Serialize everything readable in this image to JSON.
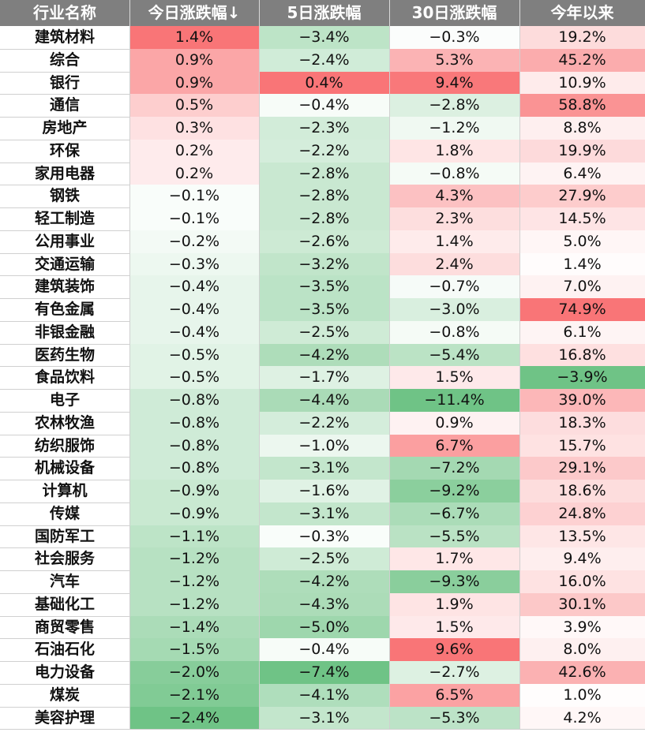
{
  "chart_data": {
    "type": "table",
    "columns": [
      "行业名称",
      "今日涨跌幅↓",
      "5日涨跌幅",
      "30日涨跌幅",
      "今年以来"
    ],
    "rows": [
      [
        "建筑材料",
        "1.4%",
        "−3.4%",
        "−0.3%",
        "19.2%"
      ],
      [
        "综合",
        "0.9%",
        "−2.4%",
        "5.3%",
        "45.2%"
      ],
      [
        "银行",
        "0.9%",
        "0.4%",
        "9.4%",
        "10.9%"
      ],
      [
        "通信",
        "0.5%",
        "−0.4%",
        "−2.8%",
        "58.8%"
      ],
      [
        "房地产",
        "0.3%",
        "−2.3%",
        "−1.2%",
        "8.8%"
      ],
      [
        "环保",
        "0.2%",
        "−2.2%",
        "1.8%",
        "19.9%"
      ],
      [
        "家用电器",
        "0.2%",
        "−2.8%",
        "−0.8%",
        "6.4%"
      ],
      [
        "钢铁",
        "−0.1%",
        "−2.8%",
        "4.3%",
        "27.9%"
      ],
      [
        "轻工制造",
        "−0.1%",
        "−2.8%",
        "2.3%",
        "14.5%"
      ],
      [
        "公用事业",
        "−0.2%",
        "−2.6%",
        "1.4%",
        "5.0%"
      ],
      [
        "交通运输",
        "−0.3%",
        "−3.2%",
        "2.4%",
        "1.4%"
      ],
      [
        "建筑装饰",
        "−0.4%",
        "−3.5%",
        "−0.7%",
        "7.0%"
      ],
      [
        "有色金属",
        "−0.4%",
        "−3.5%",
        "−3.0%",
        "74.9%"
      ],
      [
        "非银金融",
        "−0.4%",
        "−2.5%",
        "−0.8%",
        "6.1%"
      ],
      [
        "医药生物",
        "−0.5%",
        "−4.2%",
        "−5.4%",
        "16.8%"
      ],
      [
        "食品饮料",
        "−0.5%",
        "−1.7%",
        "1.5%",
        "−3.9%"
      ],
      [
        "电子",
        "−0.8%",
        "−4.4%",
        "−11.4%",
        "39.0%"
      ],
      [
        "农林牧渔",
        "−0.8%",
        "−2.2%",
        "0.9%",
        "18.3%"
      ],
      [
        "纺织服饰",
        "−0.8%",
        "−1.0%",
        "6.7%",
        "15.7%"
      ],
      [
        "机械设备",
        "−0.8%",
        "−3.1%",
        "−7.2%",
        "29.1%"
      ],
      [
        "计算机",
        "−0.9%",
        "−1.6%",
        "−9.2%",
        "18.6%"
      ],
      [
        "传媒",
        "−0.9%",
        "−3.1%",
        "−6.7%",
        "24.8%"
      ],
      [
        "国防军工",
        "−1.1%",
        "−0.3%",
        "−5.5%",
        "13.5%"
      ],
      [
        "社会服务",
        "−1.2%",
        "−2.5%",
        "1.7%",
        "9.4%"
      ],
      [
        "汽车",
        "−1.2%",
        "−4.2%",
        "−9.3%",
        "16.0%"
      ],
      [
        "基础化工",
        "−1.2%",
        "−4.3%",
        "1.9%",
        "30.1%"
      ],
      [
        "商贸零售",
        "−1.4%",
        "−5.0%",
        "1.5%",
        "3.9%"
      ],
      [
        "石油石化",
        "−1.5%",
        "−0.4%",
        "9.6%",
        "8.0%"
      ],
      [
        "电力设备",
        "−2.0%",
        "−7.4%",
        "−2.7%",
        "42.6%"
      ],
      [
        "煤炭",
        "−2.1%",
        "−4.1%",
        "6.5%",
        "1.0%"
      ],
      [
        "美容护理",
        "−2.4%",
        "−3.1%",
        "−5.3%",
        "4.2%"
      ]
    ],
    "colors": {
      "header_bg": "#7f7f7f",
      "header_text": "#ffffff",
      "positive": "#f8696b",
      "negative": "#63be7b",
      "neutral": "#ffffff"
    }
  }
}
